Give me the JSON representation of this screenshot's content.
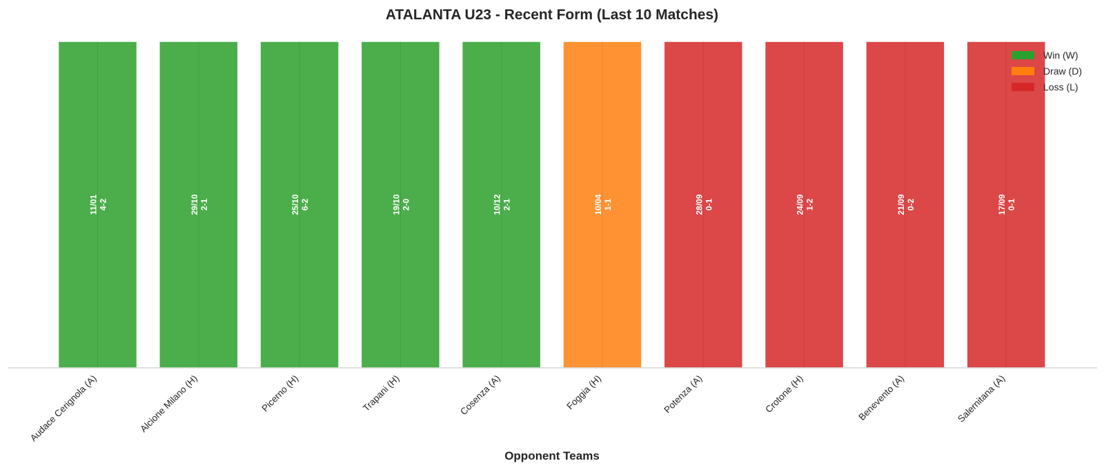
{
  "chart_data": {
    "type": "bar",
    "title": "ATALANTA U23 - Recent Form (Last 10 Matches)",
    "xlabel": "Opponent Teams",
    "ylabel": "",
    "ylim": [
      0,
      1
    ],
    "grid": false,
    "legend_position": "top-right",
    "categories": [
      "Audace Cerignola (A)",
      "Alcione Milano (H)",
      "Picerno (H)",
      "Trapani (H)",
      "Cosenza (A)",
      "Foggia (H)",
      "Potenza (A)",
      "Crotone (H)",
      "Benevento (A)",
      "Salernitana (A)"
    ],
    "values": [
      1,
      1,
      1,
      1,
      1,
      1,
      1,
      1,
      1,
      1
    ],
    "results": [
      "W",
      "W",
      "W",
      "W",
      "W",
      "D",
      "L",
      "L",
      "L",
      "L"
    ],
    "labels": [
      [
        "11/01",
        "4-2"
      ],
      [
        "29/10",
        "2-1"
      ],
      [
        "25/10",
        "6-2"
      ],
      [
        "19/10",
        "2-0"
      ],
      [
        "10/12",
        "2-1"
      ],
      [
        "10/04",
        "1-1"
      ],
      [
        "28/09",
        "0-1"
      ],
      [
        "24/09",
        "1-2"
      ],
      [
        "21/09",
        "0-2"
      ],
      [
        "17/09",
        "0-1"
      ]
    ],
    "legend": [
      {
        "key": "W",
        "label": "Win (W)",
        "color": "#2ca02c"
      },
      {
        "key": "D",
        "label": "Draw (D)",
        "color": "#ff7f0e"
      },
      {
        "key": "L",
        "label": "Loss (L)",
        "color": "#d62728"
      }
    ],
    "colors": {
      "W": "#2ca02c",
      "D": "#ff7f0e",
      "L": "#d62728"
    }
  }
}
